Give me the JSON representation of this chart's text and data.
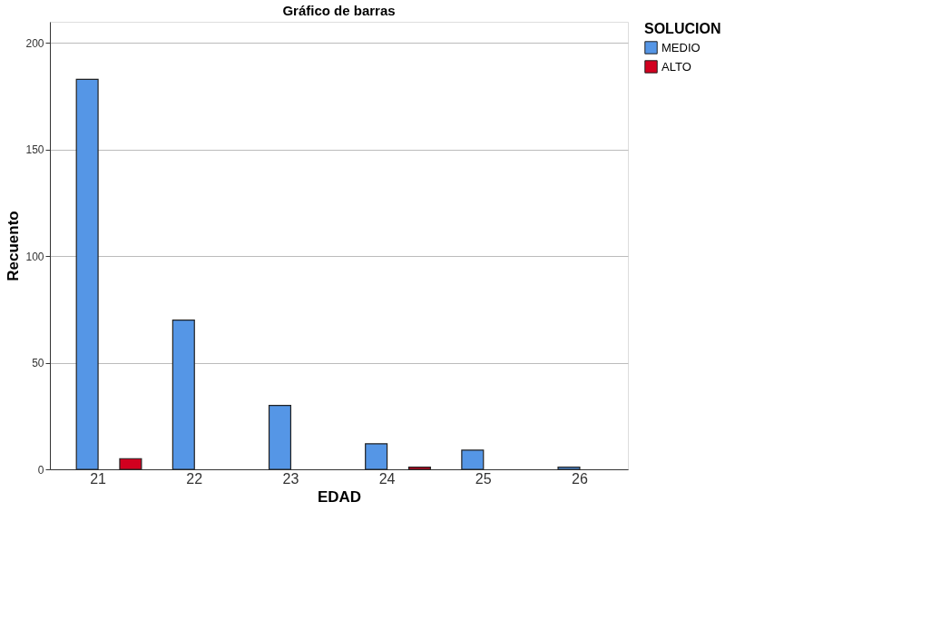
{
  "chart_data": {
    "type": "bar",
    "title": "Gráfico de barras",
    "xlabel": "EDAD",
    "ylabel": "Recuento",
    "legend_title": "SOLUCION",
    "categories": [
      "21",
      "22",
      "23",
      "24",
      "25",
      "26"
    ],
    "series": [
      {
        "name": "MEDIO",
        "color": "#5596e6",
        "values": [
          183,
          70,
          30,
          12,
          9,
          1
        ]
      },
      {
        "name": "ALTO",
        "color": "#d2001f",
        "values": [
          5,
          null,
          null,
          1,
          null,
          null
        ]
      }
    ],
    "ylim": [
      0,
      210
    ],
    "yticks": [
      0,
      50,
      100,
      150,
      200
    ],
    "grid": "y",
    "legend": "top right"
  }
}
